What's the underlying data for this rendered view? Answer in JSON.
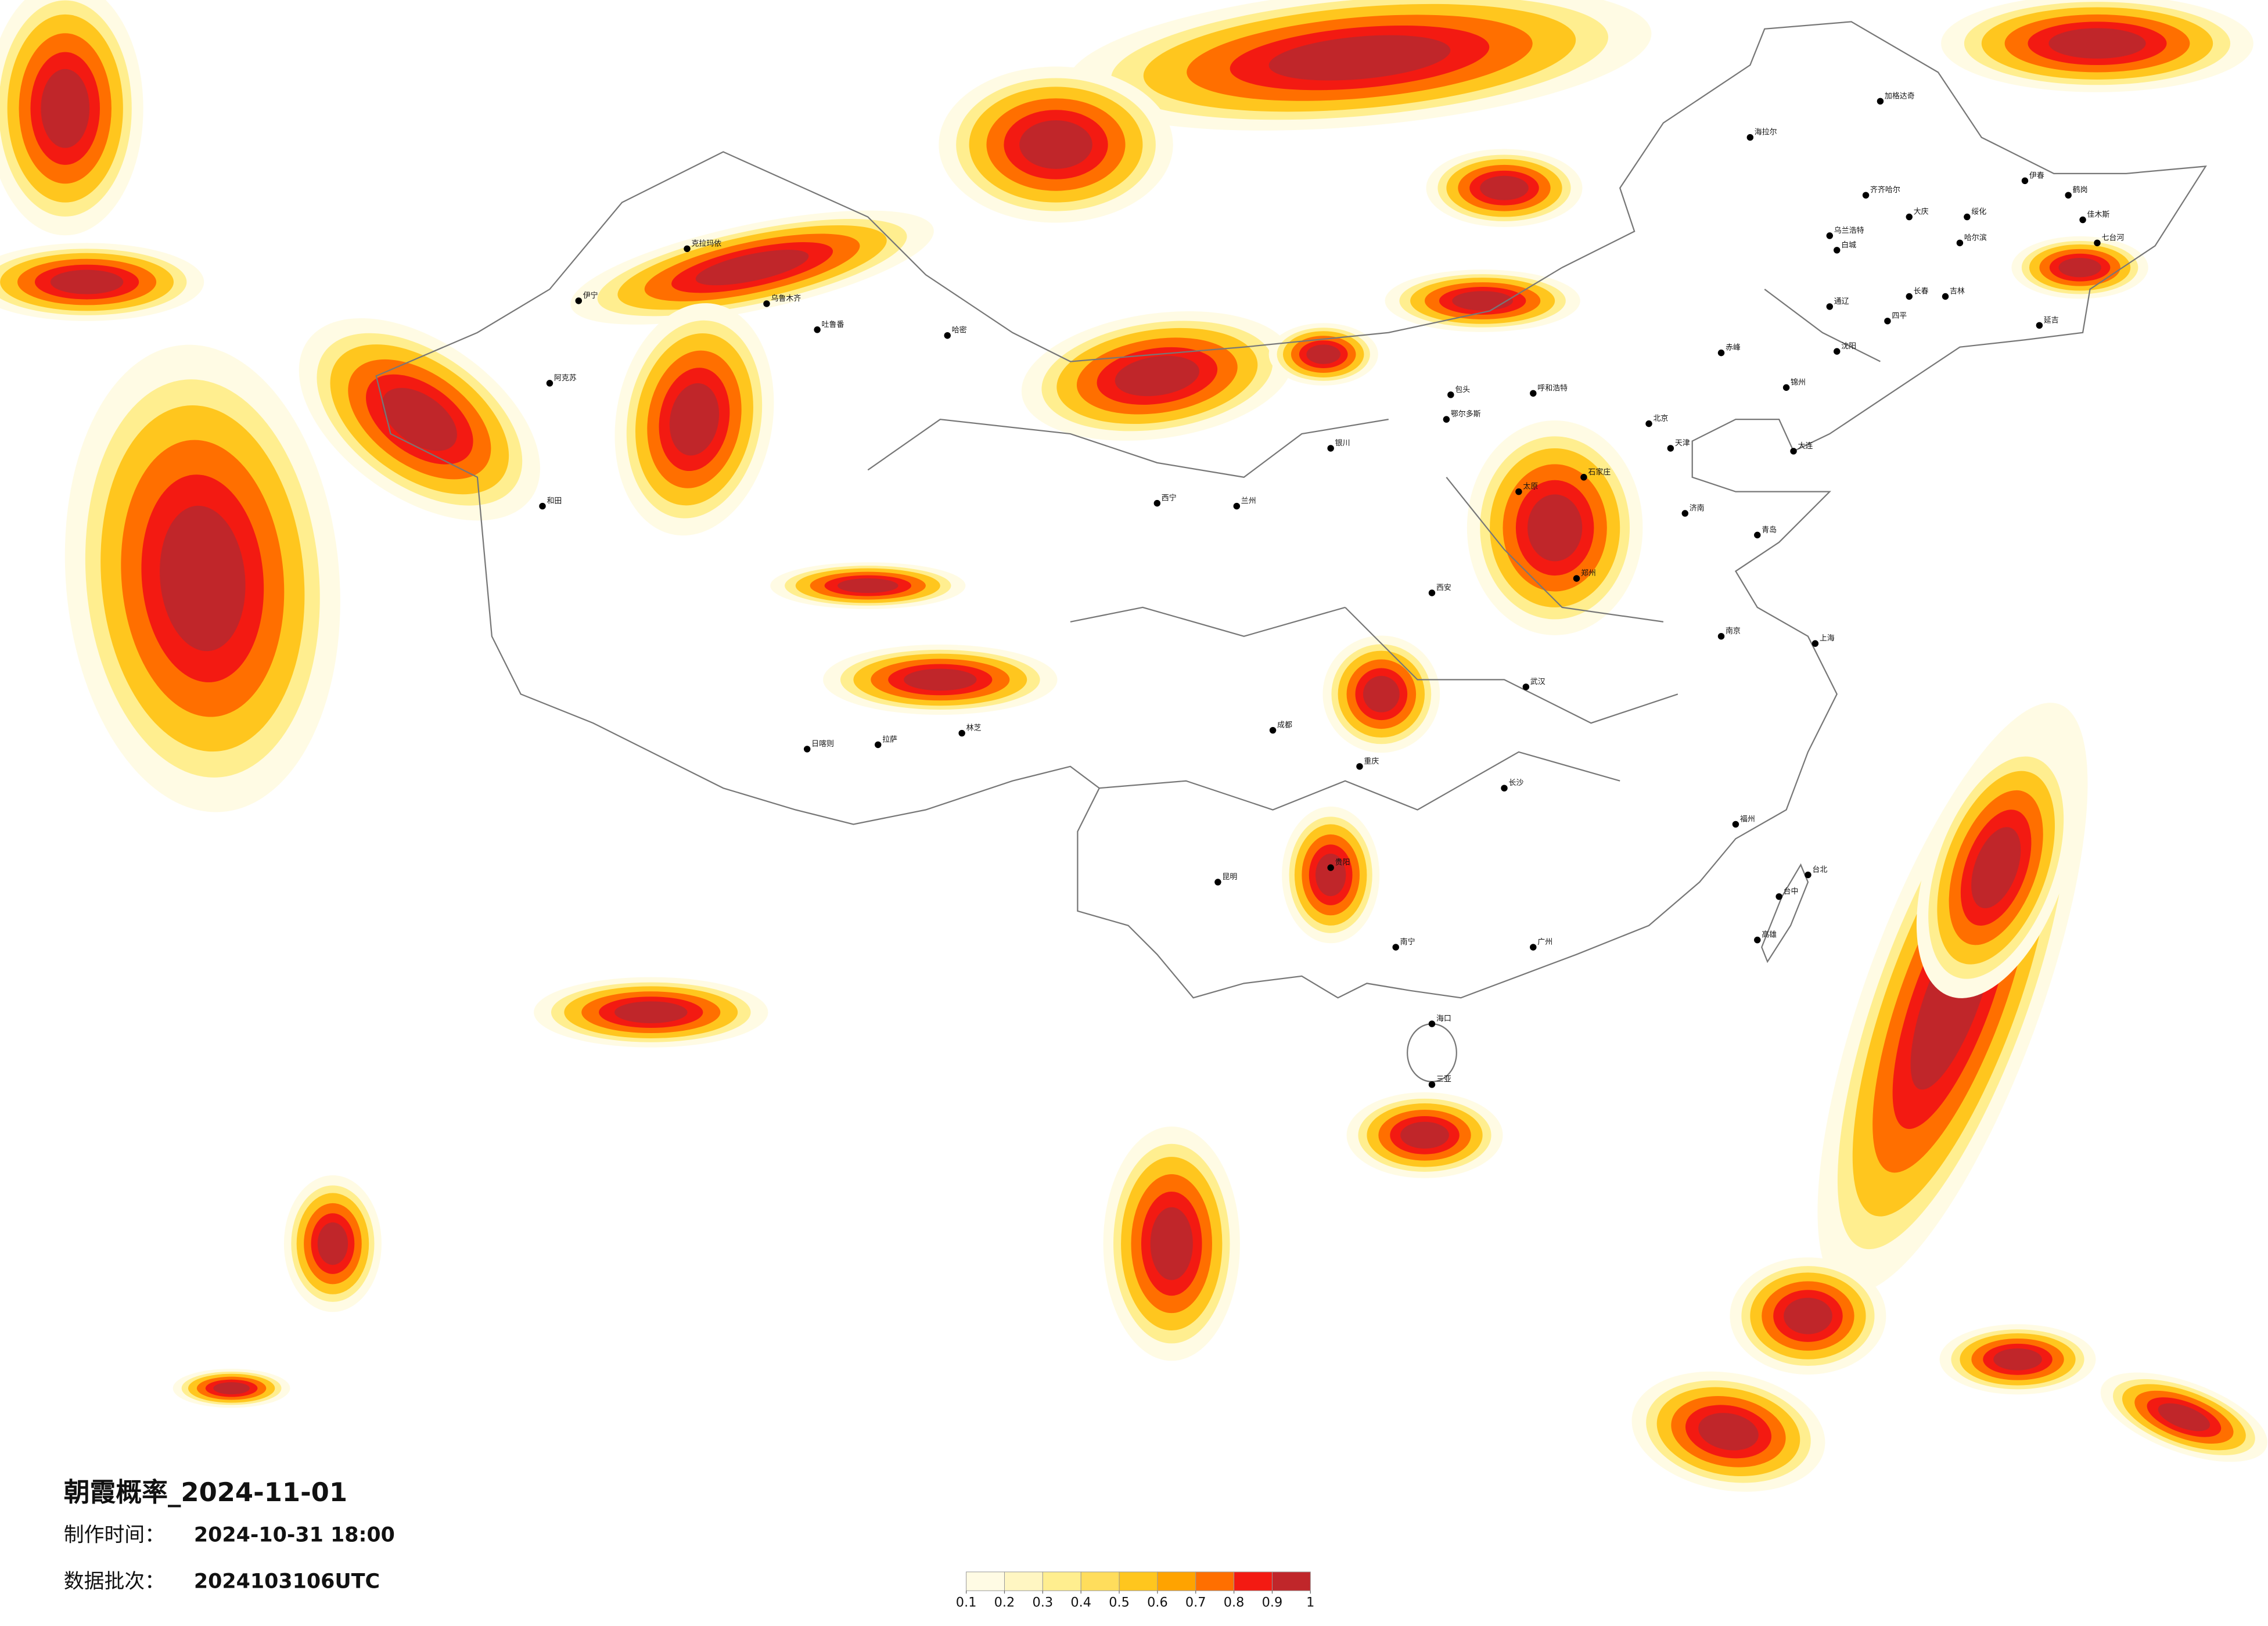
{
  "title": "朝霞概率_2024-11-01",
  "made_time": {
    "label": "制作时间：",
    "value": "2024-10-31 18:00"
  },
  "data_batch": {
    "label": "数据批次：",
    "value": "2024103106UTC"
  },
  "colorbar": {
    "colors": [
      "#fffbe4",
      "#fff6c2",
      "#ffee8f",
      "#ffdd5c",
      "#ffc61e",
      "#ffa300",
      "#ff6f00",
      "#f31a12",
      "#c0262a"
    ],
    "ticks": [
      0.1,
      0.2,
      0.3,
      0.4,
      0.5,
      0.6,
      0.7,
      0.8,
      0.9,
      1
    ]
  },
  "cities": [
    "加格达奇",
    "海拉尔",
    "齐齐哈尔",
    "大庆",
    "哈尔滨",
    "伊春",
    "鹤岗",
    "佳木斯",
    "七台河",
    "绥化",
    "乌兰浩特",
    "白城",
    "通辽",
    "四平",
    "长春",
    "吉林",
    "延吉",
    "赤峰",
    "锦州",
    "沈阳",
    "大连",
    "呼和浩特",
    "包头",
    "鄂尔多斯",
    "太原",
    "石家庄",
    "北京",
    "天津",
    "济南",
    "青岛",
    "郑州",
    "西安",
    "兰州",
    "西宁",
    "银川",
    "乌鲁木齐",
    "伊宁",
    "阿克苏",
    "和田",
    "哈密",
    "吐鲁番",
    "克拉玛依",
    "日喀则",
    "拉萨",
    "林芝",
    "成都",
    "重庆",
    "贵阳",
    "昆明",
    "南宁",
    "海口",
    "三亚",
    "广州",
    "福州",
    "上海",
    "南京",
    "武汉",
    "长沙",
    "台北",
    "台中",
    "高雄"
  ]
}
